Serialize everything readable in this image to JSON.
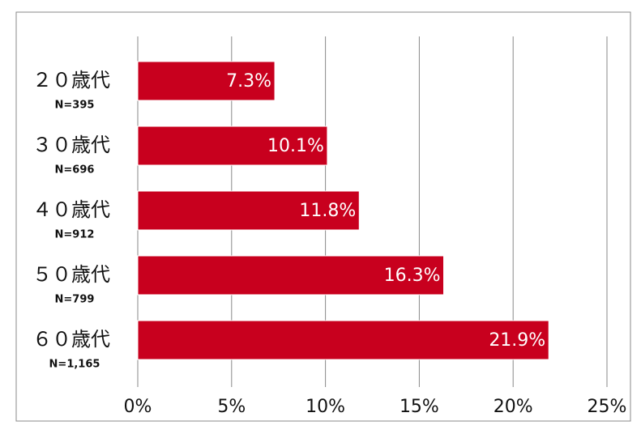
{
  "chart_data": {
    "type": "bar",
    "orientation": "horizontal",
    "categories": [
      "２０歳代",
      "３０歳代",
      "４０歳代",
      "５０歳代",
      "６０歳代"
    ],
    "sample_sizes": [
      "N=395",
      "N=696",
      "N=912",
      "N=799",
      "N=1,165"
    ],
    "values": [
      7.3,
      10.1,
      11.8,
      16.3,
      21.9
    ],
    "value_labels": [
      "7.3%",
      "10.1%",
      "11.8%",
      "16.3%",
      "21.9%"
    ],
    "color": "#c8001e",
    "xlim": [
      0,
      25
    ],
    "xticks": [
      {
        "value": 0,
        "label": "0%"
      },
      {
        "value": 5,
        "label": "5%"
      },
      {
        "value": 10,
        "label": "10%"
      },
      {
        "value": 15,
        "label": "15%"
      },
      {
        "value": 20,
        "label": "20%"
      },
      {
        "value": 25,
        "label": "25%"
      }
    ],
    "grid": true
  }
}
